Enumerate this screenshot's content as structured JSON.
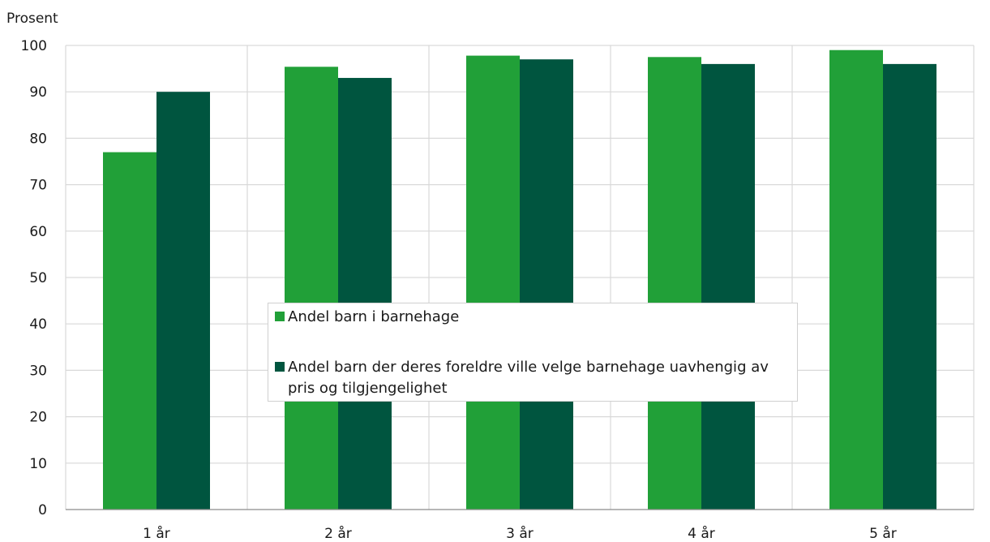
{
  "chart_data": {
    "type": "bar",
    "ylabel": "Prosent",
    "ylim": [
      0,
      100
    ],
    "yticks": [
      0,
      10,
      20,
      30,
      40,
      50,
      60,
      70,
      80,
      90,
      100
    ],
    "categories": [
      "1 år",
      "2 år",
      "3 år",
      "4 år",
      "5 år"
    ],
    "series": [
      {
        "name": "Andel barn i barnehage",
        "color": "#21a038",
        "values": [
          77,
          95.4,
          97.8,
          97.5,
          99
        ]
      },
      {
        "name": "Andel barn der deres foreldre ville velge barnehage uavhengig av pris og tilgjengelighet",
        "color": "#00553f",
        "values": [
          90,
          93,
          97,
          96,
          96
        ]
      }
    ],
    "grid": true,
    "legend_position": "center"
  }
}
